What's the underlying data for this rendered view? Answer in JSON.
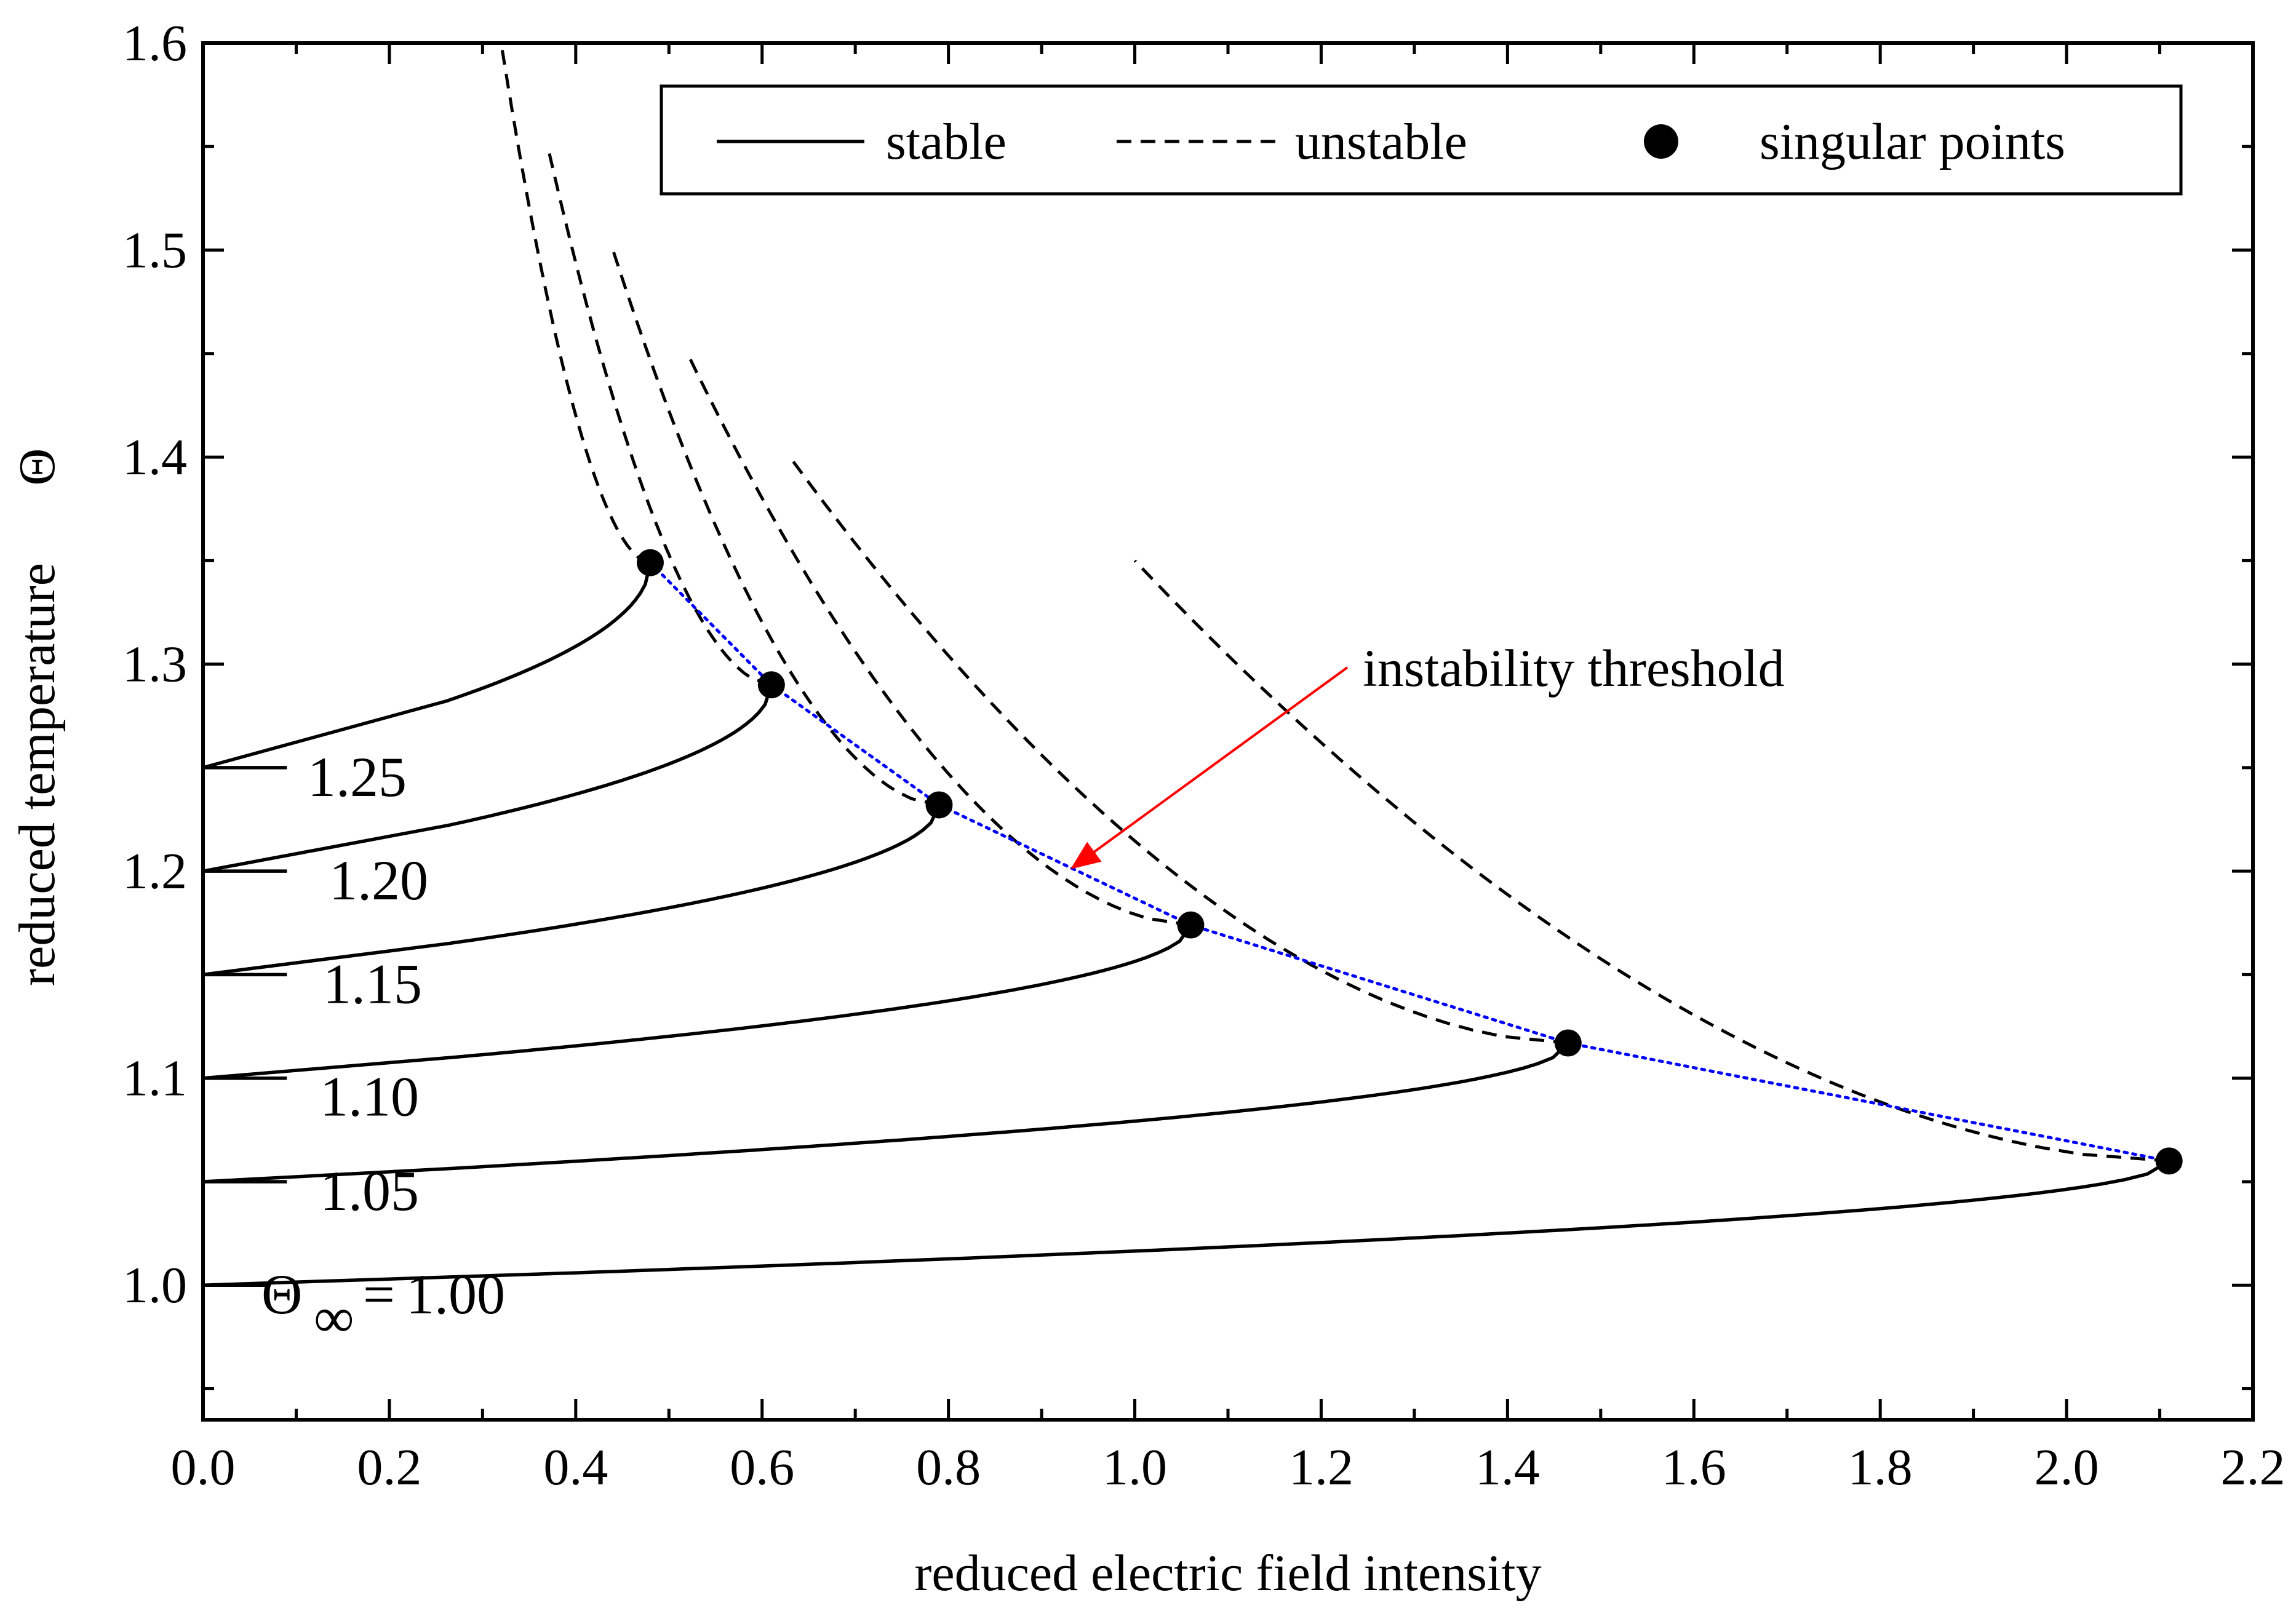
{
  "chart_data": {
    "type": "line",
    "title": "",
    "xlabel": "reduced electric field intensity",
    "ylabel": "reduced temperature",
    "ylabel_symbol": "Θ",
    "xlim": [
      0.0,
      2.2
    ],
    "ylim": [
      0.935,
      1.6
    ],
    "x_ticks": [
      "0.0",
      "0.2",
      "0.4",
      "0.6",
      "0.8",
      "1.0",
      "1.2",
      "1.4",
      "1.6",
      "1.8",
      "2.0",
      "2.2"
    ],
    "y_ticks": [
      "1.0",
      "1.1",
      "1.2",
      "1.3",
      "1.4",
      "1.5",
      "1.6"
    ],
    "x_tick_values": [
      0.0,
      0.2,
      0.4,
      0.6,
      0.8,
      1.0,
      1.2,
      1.4,
      1.6,
      1.8,
      2.0,
      2.2
    ],
    "y_tick_values": [
      1.0,
      1.1,
      1.2,
      1.3,
      1.4,
      1.5,
      1.6
    ],
    "legend": {
      "placement": "top-right",
      "entries": [
        {
          "label": "stable",
          "style": "solid"
        },
        {
          "label": "unstable",
          "style": "dashed"
        },
        {
          "label": "singular points",
          "style": "marker"
        }
      ]
    },
    "series": [
      {
        "name": "1.00",
        "theta_inf": 1.0,
        "label": "1.00",
        "prefix": "Θ",
        "prefix_sub": "∞",
        "prefix_eq": "=",
        "singular_point": [
          2.11,
          1.06
        ],
        "unstable_end": [
          1.0,
          1.35
        ]
      },
      {
        "name": "1.05",
        "theta_inf": 1.05,
        "label": "1.05",
        "singular_point": [
          1.465,
          1.117
        ],
        "unstable_end": [
          0.63,
          1.4
        ]
      },
      {
        "name": "1.10",
        "theta_inf": 1.1,
        "label": "1.10",
        "singular_point": [
          1.06,
          1.174
        ],
        "unstable_end": [
          0.52,
          1.45
        ]
      },
      {
        "name": "1.15",
        "theta_inf": 1.15,
        "label": "1.15",
        "singular_point": [
          0.79,
          1.232
        ],
        "unstable_end": [
          0.44,
          1.5
        ]
      },
      {
        "name": "1.20",
        "theta_inf": 1.2,
        "label": "1.20",
        "singular_point": [
          0.61,
          1.29
        ],
        "unstable_end": [
          0.37,
          1.55
        ]
      },
      {
        "name": "1.25",
        "theta_inf": 1.25,
        "label": "1.25",
        "singular_point": [
          0.48,
          1.349
        ],
        "unstable_end": [
          0.32,
          1.6
        ]
      }
    ],
    "annotations": [
      {
        "text": "instability threshold",
        "color": "#ff0000",
        "points_to": [
          0.93,
          1.2
        ]
      }
    ],
    "threshold_color": "#0000ff"
  }
}
